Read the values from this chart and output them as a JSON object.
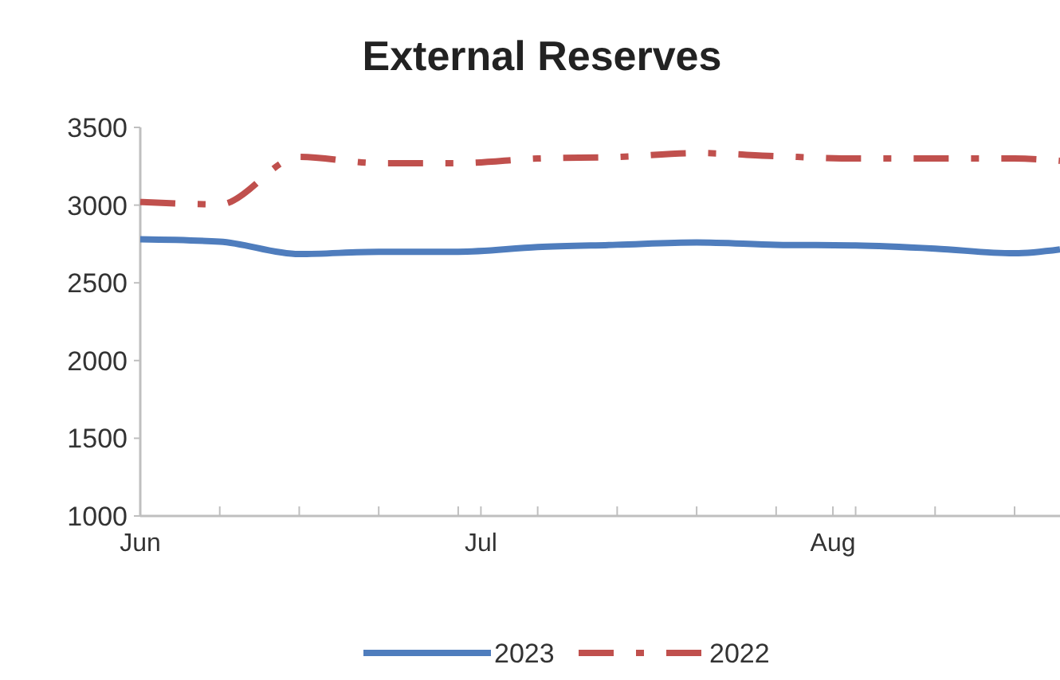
{
  "chart_data": {
    "type": "line",
    "title": "External Reserves",
    "x": [
      "--06-01",
      "--06-08",
      "--06-15",
      "--06-22",
      "--06-29",
      "--07-06",
      "--07-13",
      "--07-20",
      "--07-27",
      "--08-03",
      "--08-10",
      "--08-17",
      "--08-21"
    ],
    "series": [
      {
        "name": "2023",
        "color": "#4f7dbd",
        "line_style": "solid",
        "values": [
          2780,
          2765,
          2685,
          2700,
          2700,
          2730,
          2745,
          2760,
          2745,
          2740,
          2720,
          2690,
          2715
        ]
      },
      {
        "name": "2022",
        "color": "#c0504d",
        "line_style": "dashed",
        "values": [
          3020,
          3005,
          3310,
          3270,
          3270,
          3300,
          3310,
          3335,
          3315,
          3300,
          3300,
          3300,
          3285
        ]
      }
    ],
    "xlim": [
      "--06-01",
      "--08-21"
    ],
    "xticks": [
      {
        "value": "--06-01",
        "label": "Jun"
      },
      {
        "value": "--06-08",
        "label": null
      },
      {
        "value": "--06-15",
        "label": null
      },
      {
        "value": "--06-22",
        "label": null
      },
      {
        "value": "--06-29",
        "label": null
      },
      {
        "value": "--07-01",
        "label": "Jul"
      },
      {
        "value": "--07-06",
        "label": null
      },
      {
        "value": "--07-13",
        "label": null
      },
      {
        "value": "--07-20",
        "label": null
      },
      {
        "value": "--07-27",
        "label": null
      },
      {
        "value": "--08-01",
        "label": "Aug"
      },
      {
        "value": "--08-03",
        "label": null
      },
      {
        "value": "--08-10",
        "label": null
      },
      {
        "value": "--08-17",
        "label": null
      }
    ],
    "ylim": [
      1000,
      3500
    ],
    "yticks": [
      1000,
      1500,
      2000,
      2500,
      3000,
      3500
    ],
    "grid": false,
    "legend": "bottom",
    "marker": "none"
  }
}
